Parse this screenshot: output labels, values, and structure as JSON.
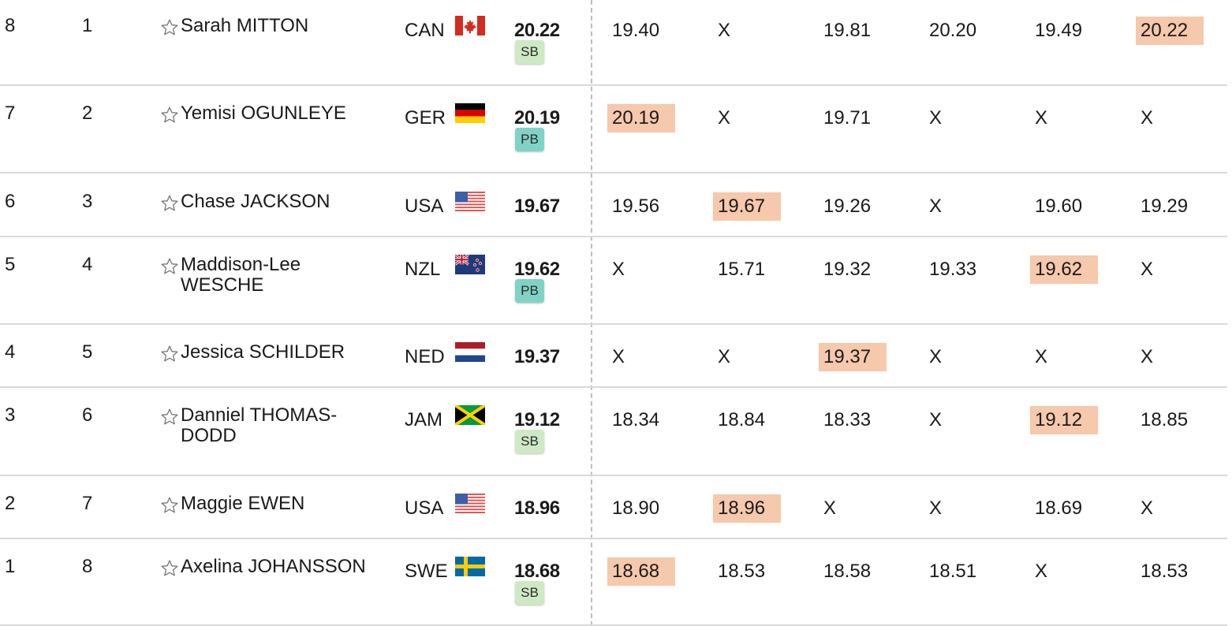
{
  "results": [
    {
      "order": "8",
      "rank": "1",
      "name": "Sarah MITTON",
      "country": "CAN",
      "flag": "canada-flag-icon",
      "mark": "20.22",
      "badge": "SB",
      "attempts": [
        "19.40",
        "X",
        "19.81",
        "20.20",
        "19.49",
        "20.22"
      ],
      "best_index": 5
    },
    {
      "order": "7",
      "rank": "2",
      "name": "Yemisi OGUNLEYE",
      "country": "GER",
      "flag": "germany-flag-icon",
      "mark": "20.19",
      "badge": "PB",
      "attempts": [
        "20.19",
        "X",
        "19.71",
        "X",
        "X",
        "X"
      ],
      "best_index": 0
    },
    {
      "order": "6",
      "rank": "3",
      "name": "Chase JACKSON",
      "country": "USA",
      "flag": "usa-flag-icon",
      "mark": "19.67",
      "badge": "",
      "attempts": [
        "19.56",
        "19.67",
        "19.26",
        "X",
        "19.60",
        "19.29"
      ],
      "best_index": 1
    },
    {
      "order": "5",
      "rank": "4",
      "name": "Maddison-Lee WESCHE",
      "country": "NZL",
      "flag": "new-zealand-flag-icon",
      "mark": "19.62",
      "badge": "PB",
      "attempts": [
        "X",
        "15.71",
        "19.32",
        "19.33",
        "19.62",
        "X"
      ],
      "best_index": 4
    },
    {
      "order": "4",
      "rank": "5",
      "name": "Jessica SCHILDER",
      "country": "NED",
      "flag": "netherlands-flag-icon",
      "mark": "19.37",
      "badge": "",
      "attempts": [
        "X",
        "X",
        "19.37",
        "X",
        "X",
        "X"
      ],
      "best_index": 2
    },
    {
      "order": "3",
      "rank": "6",
      "name": "Danniel THOMAS-DODD",
      "country": "JAM",
      "flag": "jamaica-flag-icon",
      "mark": "19.12",
      "badge": "SB",
      "attempts": [
        "18.34",
        "18.84",
        "18.33",
        "X",
        "19.12",
        "18.85"
      ],
      "best_index": 4
    },
    {
      "order": "2",
      "rank": "7",
      "name": "Maggie EWEN",
      "country": "USA",
      "flag": "usa-flag-icon",
      "mark": "18.96",
      "badge": "",
      "attempts": [
        "18.90",
        "18.96",
        "X",
        "X",
        "18.69",
        "X"
      ],
      "best_index": 1
    },
    {
      "order": "1",
      "rank": "8",
      "name": "Axelina JOHANSSON",
      "country": "SWE",
      "flag": "sweden-flag-icon",
      "mark": "18.68",
      "badge": "SB",
      "attempts": [
        "18.68",
        "18.53",
        "18.58",
        "18.51",
        "X",
        "18.53"
      ],
      "best_index": 0
    }
  ],
  "colors": {
    "best_attempt_highlight": "#f6c8ac",
    "sb_badge": "#cfe9c4",
    "pb_badge": "#7fd3c6",
    "row_separator": "#d9d9d9",
    "divider": "#bdbdbd"
  },
  "icons": {
    "favorite": "star-outline-icon"
  }
}
